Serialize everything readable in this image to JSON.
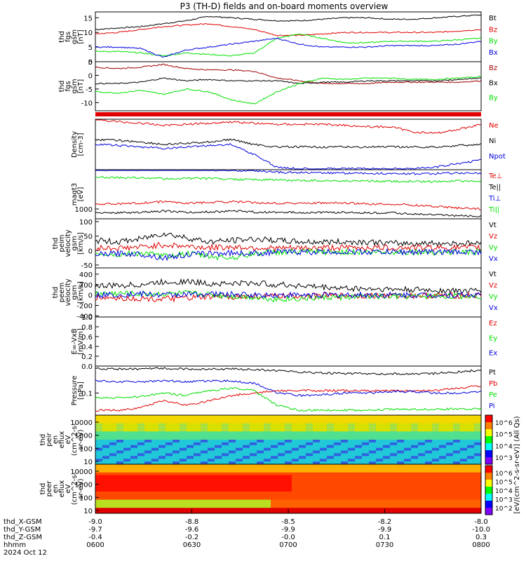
{
  "title": "P3 (TH-D) fields and on-board moments overview",
  "colors": {
    "black": "#000000",
    "red": "#e00000",
    "green": "#00e000",
    "blue": "#0000e0",
    "darkred": "#a00000"
  },
  "chart_data": [
    {
      "type": "line",
      "panel": 1,
      "ylabel": [
        "thd",
        "fgs",
        "gsm",
        "[nT]"
      ],
      "ylim": [
        0,
        17
      ],
      "yticks": [
        "0",
        "5",
        "10",
        "15"
      ],
      "series": [
        {
          "name": "Bt",
          "color": "black",
          "values": [
            11,
            11.5,
            12,
            13,
            14,
            15.5,
            15,
            14.5,
            14,
            14,
            14.5,
            15,
            15,
            14.5,
            14.5,
            15,
            15.5,
            16
          ]
        },
        {
          "name": "Bz",
          "color": "red",
          "values": [
            9.5,
            10,
            11,
            12,
            12.5,
            13,
            12,
            11,
            9,
            9,
            9.5,
            10,
            10,
            10,
            10,
            10,
            10.5,
            11
          ]
        },
        {
          "name": "By",
          "color": "green",
          "values": [
            3.5,
            3.5,
            3,
            2,
            3,
            2.5,
            2,
            3,
            8,
            9.5,
            8,
            6.5,
            6.5,
            7,
            7,
            7,
            7.5,
            8
          ]
        },
        {
          "name": "Bx",
          "color": "blue",
          "values": [
            5,
            5,
            4.5,
            1.5,
            4,
            5,
            6,
            7,
            8,
            6,
            5,
            5,
            5,
            5.5,
            5.5,
            5.5,
            6,
            7
          ]
        }
      ]
    },
    {
      "type": "line",
      "panel": 2,
      "ylabel": [
        "thd",
        "fgs",
        "gsm",
        "[nT]"
      ],
      "ylim": [
        -13,
        5
      ],
      "yticks": [
        "5",
        "0",
        "-5",
        "-10"
      ],
      "series": [
        {
          "name": "Bz",
          "color": "darkred",
          "values": [
            3,
            2.5,
            3,
            4,
            2.5,
            2,
            2,
            1.5,
            -1,
            -2,
            -3,
            -3,
            -3,
            -2.5,
            -2.5,
            -2.5,
            -2.5,
            -2
          ]
        },
        {
          "name": "Bx",
          "color": "black",
          "values": [
            -3,
            -3,
            -2.5,
            -1,
            -2,
            -1.5,
            -2,
            -2,
            -2,
            -3,
            -2.5,
            -2.5,
            -2,
            -2,
            -2,
            -2,
            -1.5,
            -1
          ]
        },
        {
          "name": "By",
          "color": "green",
          "values": [
            -6,
            -6.5,
            -5.5,
            -7,
            -5,
            -6,
            -9,
            -10.5,
            -6,
            -3,
            -1,
            -1.5,
            -1,
            -1,
            -1.5,
            -1.5,
            -1,
            -0.5
          ]
        }
      ]
    },
    {
      "type": "line",
      "panel": 3,
      "ylabel": [
        "Density",
        "[cm-3]"
      ],
      "yticks": [],
      "series": [
        {
          "name": "Ne",
          "color": "red",
          "values": [
            1.0,
            0.95,
            0.92,
            0.88,
            0.9,
            0.92,
            0.95,
            0.92,
            0.9,
            0.9,
            0.9,
            0.88,
            0.85,
            0.85,
            0.75,
            0.72,
            0.8,
            0.9
          ]
        },
        {
          "name": "Ni",
          "color": "black",
          "values": [
            0.6,
            0.58,
            0.55,
            0.5,
            0.52,
            0.55,
            0.6,
            0.5,
            0.45,
            0.45,
            0.45,
            0.45,
            0.45,
            0.45,
            0.45,
            0.45,
            0.48,
            0.5
          ]
        },
        {
          "name": "Npot",
          "color": "blue",
          "values": [
            0.5,
            0.48,
            0.45,
            0.42,
            0.45,
            0.48,
            0.5,
            0.3,
            0.05,
            0.02,
            0.02,
            0.02,
            0.02,
            0.02,
            0.02,
            0.05,
            0.12,
            0.2
          ]
        }
      ]
    },
    {
      "type": "line",
      "panel": 4,
      "ylabel": [
        "magt3",
        "[eV]"
      ],
      "yticks": [
        "1000"
      ],
      "series": [
        {
          "name": "Te⊥",
          "color": "red",
          "values": [
            0.3,
            0.3,
            0.32,
            0.35,
            0.32,
            0.33,
            0.35,
            0.33,
            0.32,
            0.32,
            0.32,
            0.32,
            0.3,
            0.3,
            0.28,
            0.25,
            0.22,
            0.2
          ]
        },
        {
          "name": "Te||",
          "color": "black",
          "values": [
            0.12,
            0.12,
            0.13,
            0.16,
            0.13,
            0.14,
            0.16,
            0.14,
            0.13,
            0.13,
            0.13,
            0.13,
            0.12,
            0.12,
            0.1,
            0.08,
            0.06,
            0.05
          ]
        },
        {
          "name": "Ti⊥",
          "color": "blue",
          "values": [
            1.0,
            1.0,
            1.0,
            1.0,
            1.0,
            1.0,
            0.98,
            0.98,
            0.95,
            0.94,
            0.94,
            0.93,
            0.93,
            0.92,
            0.92,
            0.92,
            0.93,
            0.93
          ]
        },
        {
          "name": "Ti||",
          "color": "green",
          "values": [
            0.85,
            0.84,
            0.83,
            0.82,
            0.82,
            0.82,
            0.8,
            0.8,
            0.79,
            0.78,
            0.78,
            0.77,
            0.77,
            0.76,
            0.76,
            0.76,
            0.77,
            0.77
          ]
        }
      ]
    },
    {
      "type": "line",
      "panel": 5,
      "ylabel": [
        "thd",
        "peim",
        "velocity",
        "gsm",
        "[km/s]"
      ],
      "ylim": [
        -60,
        110
      ],
      "yticks": [
        "100",
        "50",
        "0",
        "-50"
      ],
      "series": [
        {
          "name": "Vt",
          "color": "black",
          "values": [
            35,
            30,
            40,
            60,
            45,
            30,
            35,
            40,
            35,
            30,
            30,
            30,
            30,
            25,
            25,
            25,
            25,
            25
          ]
        },
        {
          "name": "Vz",
          "color": "red",
          "values": [
            10,
            8,
            12,
            20,
            15,
            10,
            12,
            10,
            8,
            8,
            10,
            10,
            10,
            10,
            10,
            10,
            10,
            10
          ]
        },
        {
          "name": "Vy",
          "color": "green",
          "values": [
            -10,
            -15,
            -8,
            -20,
            -10,
            -20,
            -25,
            -10,
            -5,
            -5,
            -5,
            -5,
            -5,
            -5,
            -5,
            -5,
            -5,
            -5
          ]
        },
        {
          "name": "Vx",
          "color": "blue",
          "values": [
            -15,
            -10,
            -12,
            -25,
            -15,
            -10,
            -8,
            -10,
            -5,
            -5,
            -5,
            -5,
            -5,
            -5,
            -5,
            -5,
            -5,
            -5
          ]
        }
      ]
    },
    {
      "type": "line",
      "panel": 6,
      "ylabel": [
        "thd",
        "peem",
        "velocity",
        "gsm",
        "[km/s]"
      ],
      "ylim": [
        -420,
        520
      ],
      "yticks": [
        "400",
        "200",
        "0",
        "-200",
        "-400"
      ],
      "series": [
        {
          "name": "Vt",
          "color": "black",
          "values": [
            170,
            180,
            200,
            250,
            260,
            220,
            220,
            230,
            200,
            180,
            150,
            130,
            120,
            110,
            100,
            90,
            80,
            80
          ]
        },
        {
          "name": "Vz",
          "color": "red",
          "values": [
            -50,
            -60,
            -70,
            -80,
            -60,
            -40,
            -30,
            -30,
            -20,
            -20,
            -10,
            -10,
            -10,
            -10,
            -10,
            -10,
            -10,
            -10
          ]
        },
        {
          "name": "Vy",
          "color": "green",
          "values": [
            30,
            30,
            20,
            20,
            30,
            10,
            -20,
            -40,
            -80,
            -70,
            -50,
            -40,
            -30,
            -30,
            -30,
            -20,
            -20,
            -20
          ]
        },
        {
          "name": "Vx",
          "color": "blue",
          "values": [
            0,
            10,
            20,
            0,
            10,
            20,
            10,
            0,
            0,
            0,
            0,
            0,
            0,
            0,
            0,
            0,
            0,
            0
          ]
        }
      ]
    },
    {
      "type": "line",
      "panel": 7,
      "ylabel": [
        "E=-VxB",
        "[mV/m]"
      ],
      "ylim": [
        0,
        1
      ],
      "yticks": [
        "1.0",
        "0.8",
        "0.6",
        "0.4",
        "0.2",
        "0.0"
      ],
      "series": [
        {
          "name": "Ez",
          "color": "red",
          "values": []
        },
        {
          "name": "Ey",
          "color": "green",
          "values": []
        },
        {
          "name": "Ex",
          "color": "blue",
          "values": []
        }
      ]
    },
    {
      "type": "line",
      "panel": 8,
      "ylabel": [
        "Pressure",
        "[nPa]"
      ],
      "yticks": [
        "0.1"
      ],
      "series": [
        {
          "name": "Pt",
          "color": "black",
          "values": [
            0.95,
            0.94,
            0.94,
            0.95,
            0.94,
            0.94,
            0.94,
            0.93,
            0.9,
            0.88,
            0.86,
            0.85,
            0.84,
            0.84,
            0.84,
            0.85,
            0.88,
            0.92
          ]
        },
        {
          "name": "Pb",
          "color": "red",
          "values": [
            0.1,
            0.1,
            0.15,
            0.3,
            0.2,
            0.3,
            0.4,
            0.45,
            0.5,
            0.5,
            0.5,
            0.5,
            0.5,
            0.5,
            0.5,
            0.5,
            0.55,
            0.6
          ]
        },
        {
          "name": "Pe",
          "color": "green",
          "values": [
            0.35,
            0.35,
            0.38,
            0.45,
            0.4,
            0.5,
            0.55,
            0.5,
            0.2,
            0.1,
            0.1,
            0.1,
            0.1,
            0.12,
            0.12,
            0.12,
            0.13,
            0.13
          ]
        },
        {
          "name": "Pi",
          "color": "blue",
          "values": [
            0.7,
            0.68,
            0.68,
            0.7,
            0.68,
            0.7,
            0.7,
            0.65,
            0.45,
            0.4,
            0.42,
            0.45,
            0.45,
            0.48,
            0.48,
            0.45,
            0.45,
            0.48
          ]
        }
      ]
    },
    {
      "type": "heatmap",
      "panel": 9,
      "ylabel": [
        "thd",
        "peir",
        "en",
        "eflux",
        "eV",
        "(cm^2-s-",
        "sr-eV)"
      ],
      "yticks": [
        "10000",
        "1000",
        "100",
        "10"
      ]
    },
    {
      "type": "heatmap",
      "panel": 10,
      "ylabel": [
        "thd",
        "peer",
        "en",
        "eflux",
        "eV",
        "(cm^2-s-",
        "sr-eV)"
      ],
      "yticks": [
        "10000",
        "1000",
        "100",
        "10"
      ]
    }
  ],
  "colorbar": {
    "label": "[eV/(cm^2-s-sr-eV)] (All Qs)",
    "top_ticks": [
      "10^6",
      "10^5",
      "10^4",
      "10^3"
    ],
    "bottom_ticks": [
      "10^6",
      "10^5",
      "10^4",
      "10^3",
      "10^2"
    ]
  },
  "xaxis": {
    "rows": [
      {
        "label": "thd_X-GSM",
        "values": [
          "-9.0",
          "-8.8",
          "-8.5",
          "-8.2",
          "-8.0"
        ]
      },
      {
        "label": "thd_Y-GSM",
        "values": [
          "-9.7",
          "-9.6",
          "-9.9",
          "-9.9",
          "-10.0"
        ]
      },
      {
        "label": "thd_Z-GSM",
        "values": [
          "-0.4",
          "-0.2",
          "-0.0",
          "0.1",
          "0.3"
        ]
      },
      {
        "label": "hhmm",
        "values": [
          "0600",
          "0630",
          "0700",
          "0730",
          "0800"
        ]
      }
    ],
    "date": "2024 Oct 12"
  }
}
